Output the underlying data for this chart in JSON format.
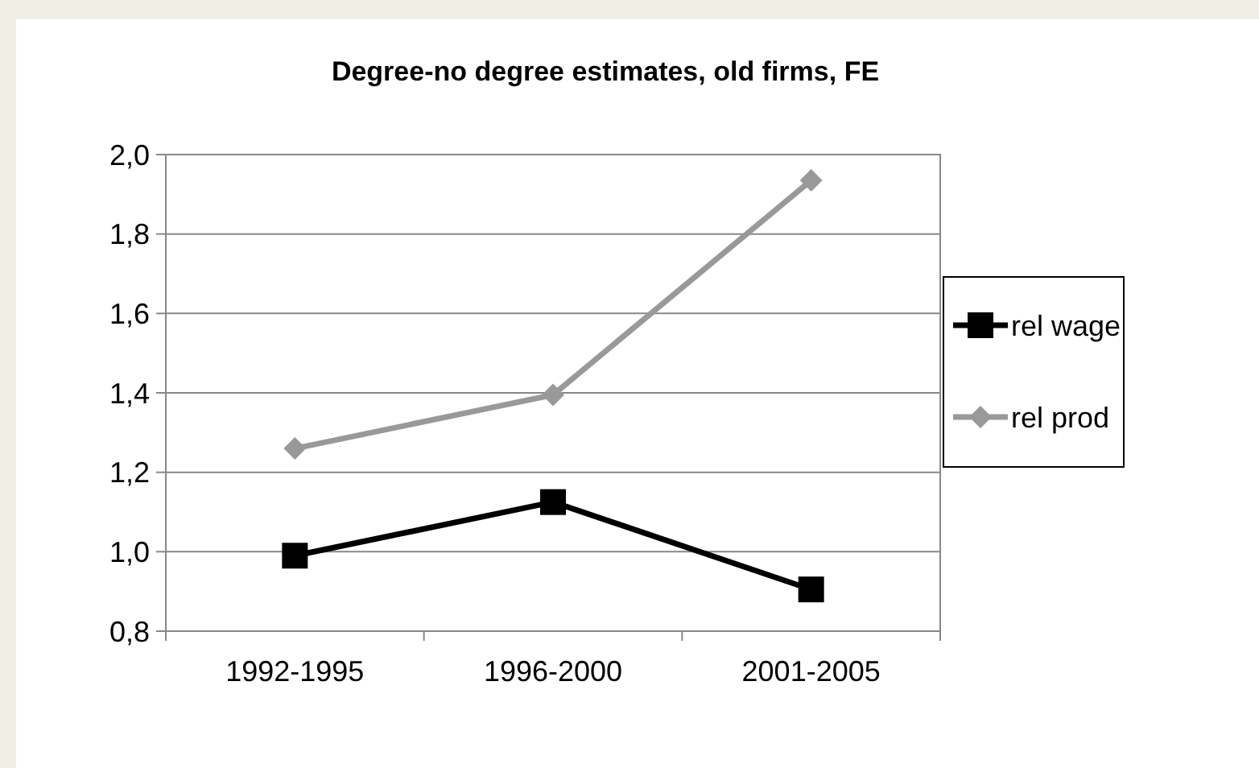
{
  "chart_data": {
    "type": "line",
    "title": "Degree-no degree estimates, old firms, FE",
    "categories": [
      "1992-1995",
      "1996-2000",
      "2001-2005"
    ],
    "series": [
      {
        "name": "rel wage",
        "color": "#000000",
        "values": [
          0.99,
          1.125,
          0.905
        ],
        "marker": "square"
      },
      {
        "name": "rel prod",
        "color": "#999999",
        "values": [
          1.26,
          1.395,
          1.935
        ],
        "marker": "diamond"
      }
    ],
    "ylim": [
      0.8,
      2.0
    ],
    "yticks": [
      {
        "value": 0.8,
        "label": "0,8"
      },
      {
        "value": 1.0,
        "label": "1,0"
      },
      {
        "value": 1.2,
        "label": "1,2"
      },
      {
        "value": 1.4,
        "label": "1,4"
      },
      {
        "value": 1.6,
        "label": "1,6"
      },
      {
        "value": 1.8,
        "label": "1,8"
      },
      {
        "value": 2.0,
        "label": "2,0"
      }
    ],
    "grid": "y",
    "legend": "right",
    "line_style": "solid"
  }
}
